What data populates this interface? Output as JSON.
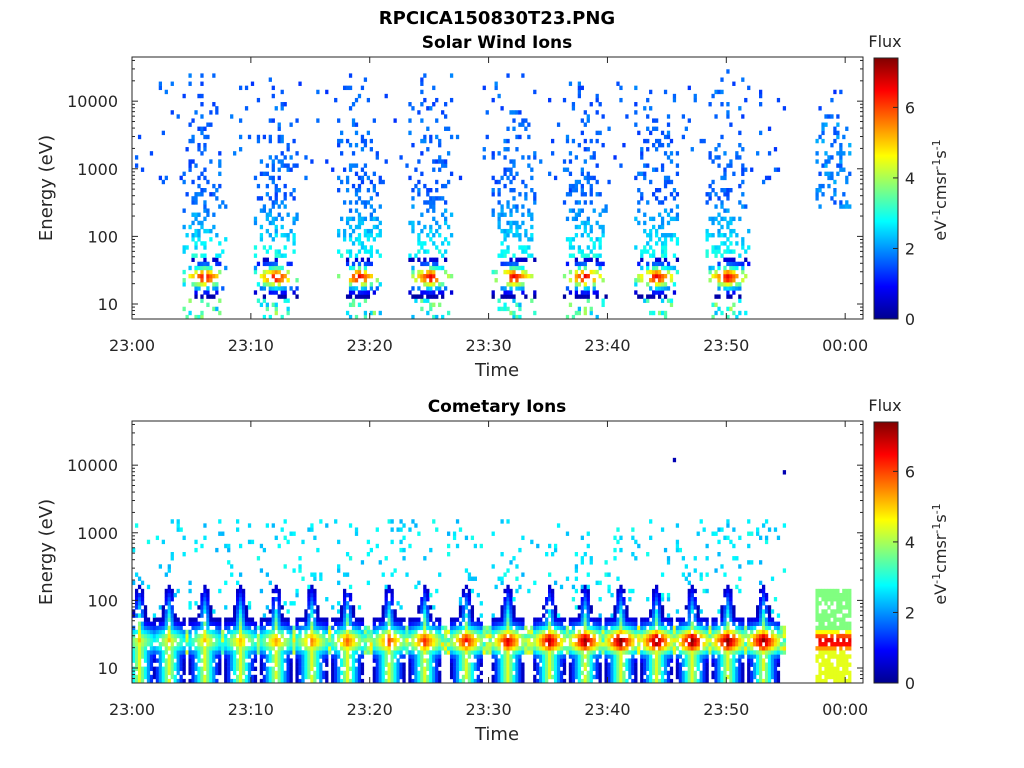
{
  "figure": {
    "title": "RPCICA150830T23.PNG"
  },
  "chart_data": [
    {
      "type": "heatmap",
      "title": "Solar Wind Ions",
      "xlabel": "Time",
      "ylabel": "Energy (eV)",
      "yscale": "log",
      "ylim": [
        6,
        45000
      ],
      "x_ticks": [
        "23:00",
        "23:10",
        "23:20",
        "23:30",
        "23:40",
        "23:50",
        "00:00"
      ],
      "y_ticks": [
        "10",
        "100",
        "1000",
        "10000"
      ],
      "colorbar": {
        "label_top": "Flux",
        "unit_label": "eV-1cm-2sr-1s-1",
        "ticks": [
          "0",
          "2",
          "4",
          "6"
        ],
        "range": [
          0,
          7.4
        ],
        "colormap": "jet"
      },
      "grid": false,
      "bursts_minutes": [
        6,
        12,
        19,
        25,
        32,
        38,
        44,
        50
      ],
      "data_gap_minutes": [
        55,
        57.5
      ],
      "late_segment_minutes": [
        57.5,
        61
      ],
      "peak_energy_eV": 25
    },
    {
      "type": "heatmap",
      "title": "Cometary Ions",
      "xlabel": "Time",
      "ylabel": "Energy (eV)",
      "yscale": "log",
      "ylim": [
        6,
        45000
      ],
      "x_ticks": [
        "23:00",
        "23:10",
        "23:20",
        "23:30",
        "23:40",
        "23:50",
        "00:00"
      ],
      "y_ticks": [
        "10",
        "100",
        "1000",
        "10000"
      ],
      "colorbar": {
        "label_top": "Flux",
        "unit_label": "eV-1cm-2sr-1s-1",
        "ticks": [
          "0",
          "2",
          "4",
          "6"
        ],
        "range": [
          0,
          7.4
        ],
        "colormap": "jet"
      },
      "grid": false,
      "bursts_minutes": [
        0.5,
        3,
        6,
        9,
        12,
        15,
        18,
        21.5,
        24.5,
        28,
        31.5,
        35,
        38,
        41,
        44,
        47,
        50,
        53
      ],
      "data_gap_minutes": [
        55,
        57.5
      ],
      "late_segment_minutes": [
        57.5,
        61
      ],
      "peak_energy_eV": 25
    }
  ]
}
